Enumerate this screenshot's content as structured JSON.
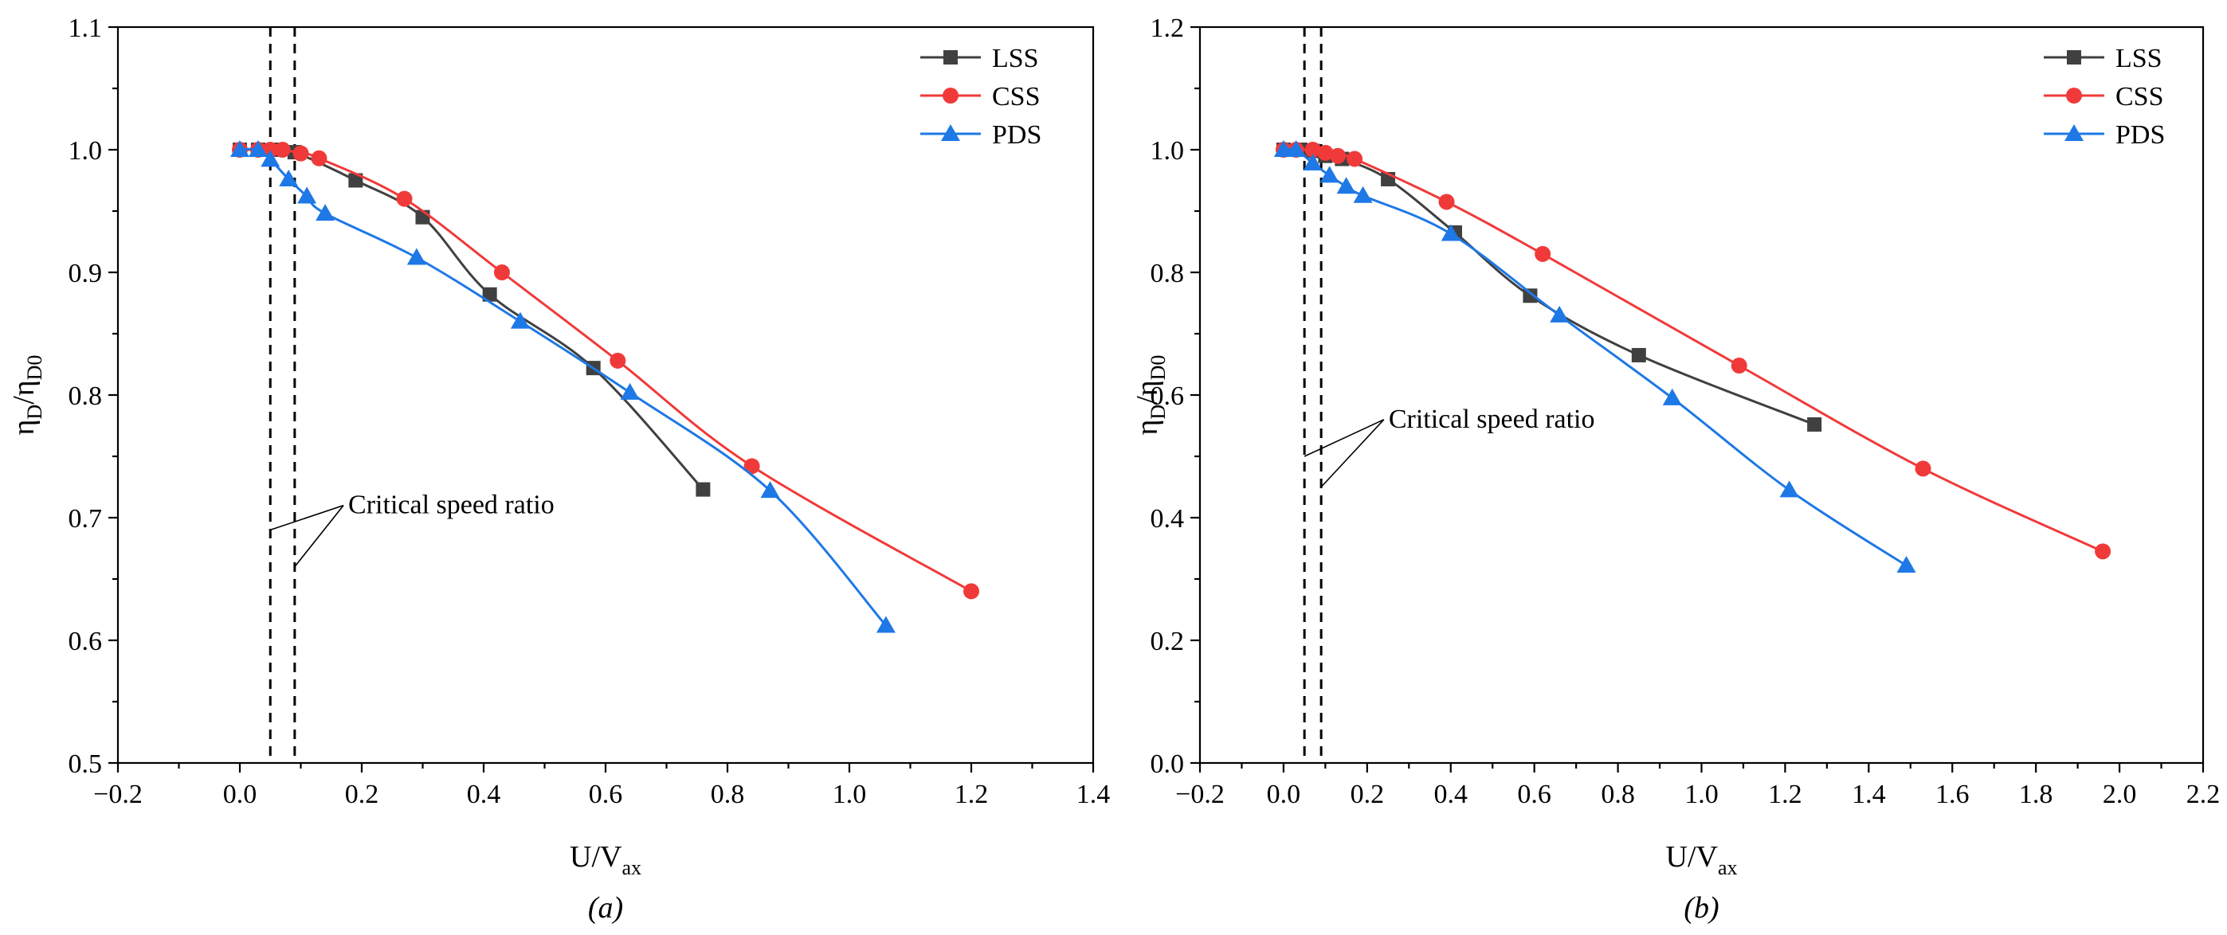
{
  "colors": {
    "LSS": "#404040",
    "CSS": "#f03a3a",
    "PDS": "#1e78e6"
  },
  "chart_data": [
    {
      "type": "line",
      "panel_label": "(a)",
      "xlabel": {
        "main": "U/V",
        "sub": "ax"
      },
      "ylabel": {
        "main1": "η",
        "sub1": "D",
        "mid": "/η",
        "sub2": "D0"
      },
      "xlim": [
        -0.2,
        1.4
      ],
      "ylim": [
        0.5,
        1.1
      ],
      "x_ticks": [
        -0.2,
        0.0,
        0.2,
        0.4,
        0.6,
        0.8,
        1.0,
        1.2,
        1.4
      ],
      "x_tick_labels": [
        "−0.2",
        "0.0",
        "0.2",
        "0.4",
        "0.6",
        "0.8",
        "1.0",
        "1.2",
        "1.4"
      ],
      "y_ticks": [
        0.5,
        0.6,
        0.7,
        0.8,
        0.9,
        1.0,
        1.1
      ],
      "y_tick_labels": [
        "0.5",
        "0.6",
        "0.7",
        "0.8",
        "0.9",
        "1.0",
        "1.1"
      ],
      "vlines": [
        0.05,
        0.09
      ],
      "annotation": {
        "text": "Critical speed ratio",
        "anchor": [
          0.17,
          0.71
        ],
        "targets": [
          [
            0.05,
            0.69
          ],
          [
            0.09,
            0.66
          ]
        ]
      },
      "legend_position": "top-right",
      "series": [
        {
          "name": "LSS",
          "marker": "square",
          "x": [
            0.0,
            0.03,
            0.06,
            0.09,
            0.19,
            0.3,
            0.41,
            0.58,
            0.76
          ],
          "y": [
            1.0,
            1.0,
            1.0,
            0.998,
            0.975,
            0.945,
            0.882,
            0.822,
            0.723
          ]
        },
        {
          "name": "CSS",
          "marker": "circle",
          "x": [
            0.0,
            0.03,
            0.05,
            0.07,
            0.1,
            0.13,
            0.27,
            0.43,
            0.62,
            0.84,
            1.2
          ],
          "y": [
            1.0,
            1.0,
            1.0,
            1.0,
            0.997,
            0.993,
            0.96,
            0.9,
            0.828,
            0.742,
            0.64
          ]
        },
        {
          "name": "PDS",
          "marker": "triangle",
          "x": [
            0.0,
            0.03,
            0.05,
            0.08,
            0.11,
            0.14,
            0.29,
            0.46,
            0.64,
            0.87,
            1.06
          ],
          "y": [
            1.0,
            1.0,
            0.992,
            0.976,
            0.962,
            0.948,
            0.912,
            0.86,
            0.802,
            0.722,
            0.612
          ]
        }
      ]
    },
    {
      "type": "line",
      "panel_label": "(b)",
      "xlabel": {
        "main": "U/V",
        "sub": "ax"
      },
      "ylabel": {
        "main1": "η",
        "sub1": "D",
        "mid": "/η",
        "sub2": "D0"
      },
      "xlim": [
        -0.2,
        2.2
      ],
      "ylim": [
        0.0,
        1.2
      ],
      "x_ticks": [
        -0.2,
        0.0,
        0.2,
        0.4,
        0.6,
        0.8,
        1.0,
        1.2,
        1.4,
        1.6,
        1.8,
        2.0,
        2.2
      ],
      "x_tick_labels": [
        "−0.2",
        "0.0",
        "0.2",
        "0.4",
        "0.6",
        "0.8",
        "1.0",
        "1.2",
        "1.4",
        "1.6",
        "1.8",
        "2.0",
        "2.2"
      ],
      "y_ticks": [
        0.0,
        0.2,
        0.4,
        0.6,
        0.8,
        1.0,
        1.2
      ],
      "y_tick_labels": [
        "0.0",
        "0.2",
        "0.4",
        "0.6",
        "0.8",
        "1.0",
        "1.2"
      ],
      "vlines": [
        0.05,
        0.09
      ],
      "annotation": {
        "text": "Critical speed ratio",
        "anchor": [
          0.24,
          0.56
        ],
        "targets": [
          [
            0.05,
            0.5
          ],
          [
            0.09,
            0.45
          ]
        ]
      },
      "legend_position": "top-right",
      "series": [
        {
          "name": "LSS",
          "marker": "square",
          "x": [
            0.0,
            0.04,
            0.07,
            0.1,
            0.14,
            0.25,
            0.41,
            0.59,
            0.85,
            1.27
          ],
          "y": [
            1.0,
            1.0,
            0.998,
            0.99,
            0.985,
            0.952,
            0.865,
            0.762,
            0.665,
            0.552
          ]
        },
        {
          "name": "CSS",
          "marker": "circle",
          "x": [
            0.0,
            0.03,
            0.07,
            0.1,
            0.13,
            0.17,
            0.39,
            0.62,
            1.09,
            1.53,
            1.96
          ],
          "y": [
            1.0,
            1.0,
            1.0,
            0.995,
            0.99,
            0.985,
            0.915,
            0.83,
            0.648,
            0.48,
            0.345
          ]
        },
        {
          "name": "PDS",
          "marker": "triangle",
          "x": [
            0.0,
            0.03,
            0.07,
            0.11,
            0.15,
            0.19,
            0.4,
            0.66,
            0.93,
            1.21,
            1.49
          ],
          "y": [
            1.0,
            1.0,
            0.978,
            0.958,
            0.94,
            0.925,
            0.863,
            0.73,
            0.595,
            0.445,
            0.322
          ]
        }
      ]
    }
  ]
}
